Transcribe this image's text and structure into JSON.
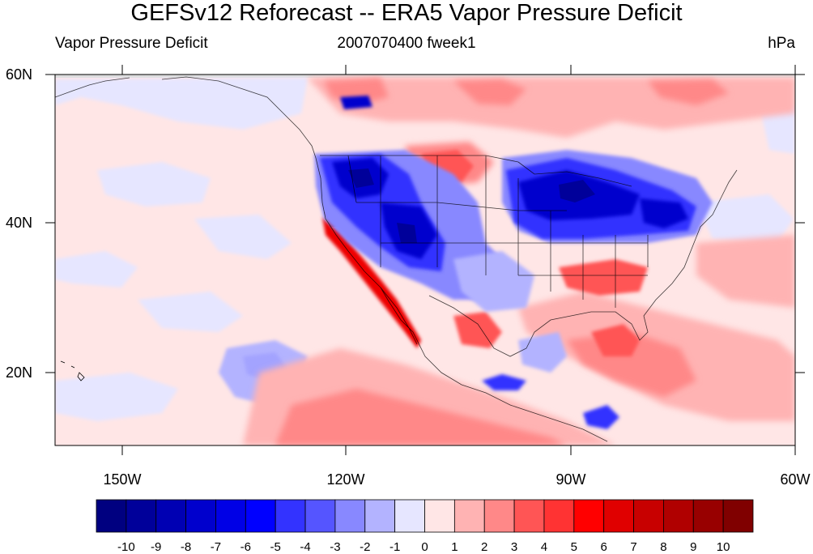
{
  "title": "GEFSv12 Reforecast -- ERA5 Vapor Pressure Deficit",
  "subtitle_left": "Vapor Pressure Deficit",
  "subtitle_center": "2007070400 fweek1",
  "subtitle_right": "hPa",
  "map": {
    "lat_labels": [
      "60N",
      "40N",
      "20N"
    ],
    "lon_labels": [
      "150W",
      "120W",
      "90W",
      "60W"
    ]
  },
  "colorbar": {
    "labels": [
      "-10",
      "-9",
      "-8",
      "-7",
      "-6",
      "-5",
      "-4",
      "-3",
      "-2",
      "-1",
      "0",
      "1",
      "2",
      "3",
      "4",
      "5",
      "6",
      "7",
      "8",
      "9",
      "10"
    ],
    "colors": [
      "#000080",
      "#00009a",
      "#0000b3",
      "#0000cd",
      "#0000e6",
      "#0000ff",
      "#3333ff",
      "#5555ff",
      "#8888ff",
      "#b3b3ff",
      "#e6e6ff",
      "#ffe6e6",
      "#ffb3b3",
      "#ff8888",
      "#ff5555",
      "#ff3333",
      "#ff0000",
      "#e00000",
      "#c80000",
      "#b00000",
      "#980000",
      "#800000"
    ]
  }
}
